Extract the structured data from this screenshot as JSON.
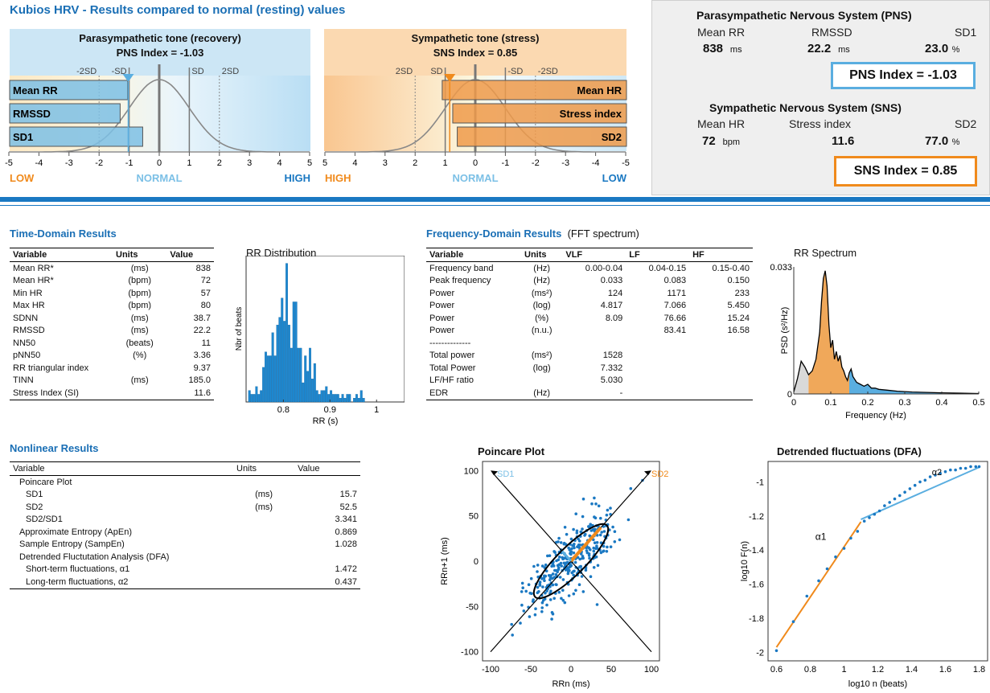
{
  "header": {
    "title": "Kubios HRV - Results compared to normal (resting) values"
  },
  "pns_panel": {
    "title": "Parasympathetic tone (recovery)",
    "index_label": "PNS Index = -1.03",
    "sd_marks": [
      "-2SD",
      "-SD",
      "SD",
      "2SD"
    ],
    "bars": [
      {
        "label": "Mean RR",
        "value": -1.05
      },
      {
        "label": "RMSSD",
        "value": -1.3
      },
      {
        "label": "SD1",
        "value": -0.55
      }
    ],
    "index": -1.03,
    "axis_ticks": [
      "-5",
      "-4",
      "-3",
      "-2",
      "-1",
      "0",
      "1",
      "2",
      "3",
      "4",
      "5"
    ],
    "low": "LOW",
    "normal": "NORMAL",
    "high": "HIGH"
  },
  "sns_panel": {
    "title": "Sympathetic tone (stress)",
    "index_label": "SNS Index = 0.85",
    "sd_marks": [
      "2SD",
      "SD",
      "-SD",
      "-2SD"
    ],
    "bars": [
      {
        "label": "Mean HR",
        "value": 1.1
      },
      {
        "label": "Stress index",
        "value": 0.75
      },
      {
        "label": "SD2",
        "value": 0.6
      }
    ],
    "index": 0.85,
    "axis_ticks": [
      "5",
      "4",
      "3",
      "2",
      "1",
      "0",
      "-1",
      "-2",
      "-3",
      "-4",
      "-5"
    ],
    "high": "HIGH",
    "normal": "NORMAL",
    "low": "LOW"
  },
  "summary": {
    "pns": {
      "title": "Parasympathetic Nervous System (PNS)",
      "labels": [
        "Mean RR",
        "RMSSD",
        "SD1"
      ],
      "values": [
        "838",
        "22.2",
        "23.0"
      ],
      "units": [
        "ms",
        "ms",
        "%"
      ],
      "index_label": "PNS Index = -1.03",
      "color": "#5aaee0"
    },
    "sns": {
      "title": "Sympathetic Nervous System (SNS)",
      "labels": [
        "Mean HR",
        "Stress index",
        "SD2"
      ],
      "values": [
        "72",
        "11.6",
        "77.0"
      ],
      "units": [
        "bpm",
        "",
        "%"
      ],
      "index_label": "SNS Index = 0.85",
      "color": "#f08a1c"
    }
  },
  "time_domain": {
    "title": "Time-Domain Results",
    "headers": [
      "Variable",
      "Units",
      "Value"
    ],
    "rows": [
      [
        "Mean RR*",
        "(ms)",
        "838"
      ],
      [
        "Mean HR*",
        "(bpm)",
        "72"
      ],
      [
        "Min HR",
        "(bpm)",
        "57"
      ],
      [
        "Max HR",
        "(bpm)",
        "80"
      ],
      [
        "SDNN",
        "(ms)",
        "38.7"
      ],
      [
        "RMSSD",
        "(ms)",
        "22.2"
      ],
      [
        "NN50",
        "(beats)",
        "11"
      ],
      [
        "pNN50",
        "(%)",
        "3.36"
      ],
      [
        "RR triangular index",
        "",
        "9.37"
      ],
      [
        "TINN",
        "(ms)",
        "185.0"
      ],
      [
        "Stress Index (SI)",
        "",
        "11.6"
      ]
    ]
  },
  "frequency_domain": {
    "title": "Frequency-Domain Results",
    "subtitle": "(FFT spectrum)",
    "headers": [
      "Variable",
      "Units",
      "VLF",
      "LF",
      "HF"
    ],
    "rows": [
      [
        "Frequency band",
        "(Hz)",
        "0.00-0.04",
        "0.04-0.15",
        "0.15-0.40"
      ],
      [
        "Peak frequency",
        "(Hz)",
        "0.033",
        "0.083",
        "0.150"
      ],
      [
        "Power",
        "(ms²)",
        "124",
        "1171",
        "233"
      ],
      [
        "Power",
        "(log)",
        "4.817",
        "7.066",
        "5.450"
      ],
      [
        "Power",
        "(%)",
        "8.09",
        "76.66",
        "15.24"
      ],
      [
        "Power",
        "(n.u.)",
        "",
        "83.41",
        "16.58"
      ],
      [
        "--------------",
        "",
        "",
        "",
        ""
      ],
      [
        "Total power",
        "(ms²)",
        "1528",
        "",
        ""
      ],
      [
        "Total Power",
        "(log)",
        "7.332",
        "",
        ""
      ],
      [
        "LF/HF ratio",
        "",
        "5.030",
        "",
        ""
      ],
      [
        "EDR",
        "(Hz)",
        "-",
        "",
        ""
      ]
    ]
  },
  "nonlinear": {
    "title": "Nonlinear Results",
    "headers": [
      "Variable",
      "Units",
      "Value"
    ],
    "rows": [
      [
        "Poincare Plot",
        "",
        "",
        0
      ],
      [
        "SD1",
        "(ms)",
        "15.7",
        1
      ],
      [
        "SD2",
        "(ms)",
        "52.5",
        1
      ],
      [
        "SD2/SD1",
        "",
        "3.341",
        1
      ],
      [
        "Approximate Entropy (ApEn)",
        "",
        "0.869",
        0
      ],
      [
        "Sample Entropy (SampEn)",
        "",
        "1.028",
        0
      ],
      [
        "Detrended Fluctutation Analysis (DFA)",
        "",
        "",
        0
      ],
      [
        "Short-term fluctuations, α1",
        "",
        "1.472",
        1
      ],
      [
        "Long-term fluctuations, α2",
        "",
        "0.437",
        1
      ]
    ]
  },
  "chart_data": [
    {
      "type": "bar",
      "title": "RR Distribution",
      "xlabel": "RR (s)",
      "ylabel": "Nbr of beats",
      "x_ticks": [
        "0.8",
        "0.9",
        "1"
      ],
      "bin_start": 0.725,
      "bin_width": 0.005,
      "values": [
        3,
        2,
        2,
        4,
        2,
        3,
        9,
        13,
        12,
        12,
        18,
        12,
        20,
        22,
        27,
        21,
        36,
        20,
        14,
        26,
        26,
        14,
        14,
        5,
        12,
        8,
        14,
        6,
        10,
        3,
        2,
        3,
        3,
        4,
        2,
        3,
        2,
        2,
        2,
        1,
        2,
        1,
        2,
        2,
        0,
        1,
        2,
        1,
        3,
        1
      ],
      "xlim": [
        0.72,
        1.06
      ],
      "color": "#1e88d0"
    },
    {
      "type": "area",
      "title": "RR Spectrum",
      "xlabel": "Frequency (Hz)",
      "ylabel": "PSD (s²/Hz)",
      "xlim": [
        0,
        0.5
      ],
      "ylim": [
        0,
        0.033
      ],
      "x_ticks": [
        "0",
        "0.1",
        "0.2",
        "0.3",
        "0.4",
        "0.5"
      ],
      "y_ticks": [
        "0",
        "0.033"
      ],
      "x": [
        0,
        0.01,
        0.02,
        0.03,
        0.04,
        0.05,
        0.06,
        0.07,
        0.075,
        0.08,
        0.085,
        0.09,
        0.095,
        0.1,
        0.105,
        0.11,
        0.115,
        0.12,
        0.125,
        0.13,
        0.135,
        0.14,
        0.145,
        0.15,
        0.155,
        0.16,
        0.17,
        0.18,
        0.19,
        0.2,
        0.21,
        0.22,
        0.23,
        0.25,
        0.28,
        0.32,
        0.36,
        0.4,
        0.45,
        0.5
      ],
      "y": [
        0.0005,
        0.004,
        0.0085,
        0.007,
        0.005,
        0.006,
        0.009,
        0.016,
        0.024,
        0.03,
        0.032,
        0.028,
        0.018,
        0.012,
        0.014,
        0.009,
        0.011,
        0.0085,
        0.01,
        0.007,
        0.006,
        0.0045,
        0.0035,
        0.0055,
        0.0065,
        0.0045,
        0.003,
        0.0025,
        0.002,
        0.0025,
        0.0015,
        0.0015,
        0.0012,
        0.001,
        0.0007,
        0.0005,
        0.0004,
        0.0003,
        0.0002,
        0.0001
      ],
      "bands": [
        {
          "name": "VLF",
          "range": [
            0,
            0.04
          ],
          "color": "#d9d9d9"
        },
        {
          "name": "LF",
          "range": [
            0.04,
            0.15
          ],
          "color": "#f0a85a"
        },
        {
          "name": "HF",
          "range": [
            0.15,
            0.4
          ],
          "color": "#5aaee0"
        }
      ]
    },
    {
      "type": "scatter",
      "title": "Poincare Plot",
      "xlabel": "RRn (ms)",
      "ylabel": "RRn+1 (ms)",
      "xlim": [
        -110,
        110
      ],
      "ylim": [
        -110,
        110
      ],
      "ticks": [
        "-100",
        "-50",
        "0",
        "50",
        "100"
      ],
      "annotations": [
        "SD1",
        "SD2"
      ],
      "sd1": 15.7,
      "sd2": 52.5
    },
    {
      "type": "scatter",
      "title": "Detrended fluctuations (DFA)",
      "xlabel": "log10 n (beats)",
      "ylabel": "log10 F(n)",
      "xlim": [
        0.55,
        1.85
      ],
      "ylim": [
        -2.05,
        -0.88
      ],
      "x_ticks": [
        "0.6",
        "0.8",
        "1",
        "1.2",
        "1.4",
        "1.6",
        "1.8"
      ],
      "y_ticks": [
        "-1",
        "-1.2",
        "-1.4",
        "-1.6",
        "-1.8",
        "-2"
      ],
      "annotations": [
        "α1",
        "α2"
      ],
      "alpha1": 1.472,
      "alpha2": 0.437
    }
  ]
}
